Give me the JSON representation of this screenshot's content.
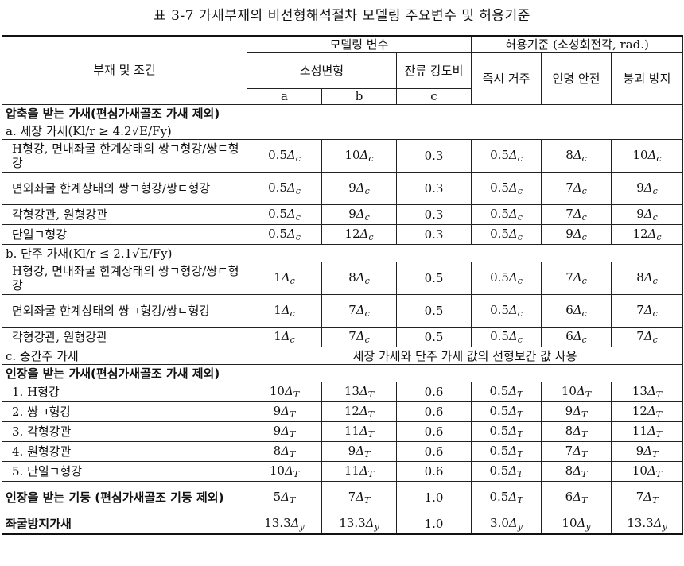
{
  "caption": "표 3-7 가새부재의 비선형해석절차 모델링 주요변수 및 허용기준",
  "header": {
    "member_condition": "부재 및 조건",
    "modeling_params": "모델링 변수",
    "acceptance": "허용기준 (소성회전각, rad.)",
    "plastic_deform": "소성변형",
    "residual_strength": "잔류 강도비",
    "io": "즉시 거주",
    "ls": "인명 안전",
    "cp": "붕괴 방지",
    "col_a": "a",
    "col_b": "b",
    "col_c": "c"
  },
  "sections": {
    "compression": "압축을 받는 가새(편심가새골조 가새 제외)",
    "slender": "a. 세장 가새(Kl/r ≥ 4.2√E/Fy)",
    "stocky": "b. 단주 가새(Kl/r ≤ 2.1√E/Fy)",
    "intermediate": "c. 중간주 가새",
    "intermediate_note": "세장 가새와 단주 가새 값의 선형보간 값 사용",
    "tension": "인장을 받는 가새(편심가새골조 가새 제외)",
    "tension_column": "인장을 받는 기둥 (편심가새골조 기둥 제외)",
    "buckling_restrained": "좌굴방지가새"
  },
  "slender_rows": [
    {
      "label": "H형강, 면내좌굴 한계상태의 쌍ㄱ형강/쌍ㄷ형강",
      "a": "0.5Δc",
      "b": "10Δc",
      "c": "0.3",
      "io": "0.5Δc",
      "ls": "8Δc",
      "cp": "10Δc"
    },
    {
      "label": "면외좌굴 한계상태의 쌍ㄱ형강/쌍ㄷ형강",
      "a": "0.5Δc",
      "b": "9Δc",
      "c": "0.3",
      "io": "0.5Δc",
      "ls": "7Δc",
      "cp": "9Δc"
    },
    {
      "label": "각형강관, 원형강관",
      "a": "0.5Δc",
      "b": "9Δc",
      "c": "0.3",
      "io": "0.5Δc",
      "ls": "7Δc",
      "cp": "9Δc"
    },
    {
      "label": "단일ㄱ형강",
      "a": "0.5Δc",
      "b": "12Δc",
      "c": "0.3",
      "io": "0.5Δc",
      "ls": "9Δc",
      "cp": "12Δc"
    }
  ],
  "stocky_rows": [
    {
      "label": "H형강, 면내좌굴 한계상태의 쌍ㄱ형강/쌍ㄷ형강",
      "a": "1Δc",
      "b": "8Δc",
      "c": "0.5",
      "io": "0.5Δc",
      "ls": "7Δc",
      "cp": "8Δc"
    },
    {
      "label": "면외좌굴 한계상태의 쌍ㄱ형강/쌍ㄷ형강",
      "a": "1Δc",
      "b": "7Δc",
      "c": "0.5",
      "io": "0.5Δc",
      "ls": "6Δc",
      "cp": "7Δc"
    },
    {
      "label": "각형강관, 원형강관",
      "a": "1Δc",
      "b": "7Δc",
      "c": "0.5",
      "io": "0.5Δc",
      "ls": "6Δc",
      "cp": "7Δc"
    }
  ],
  "tension_rows": [
    {
      "label": "1. H형강",
      "a": "10ΔT",
      "b": "13ΔT",
      "c": "0.6",
      "io": "0.5ΔT",
      "ls": "10ΔT",
      "cp": "13ΔT"
    },
    {
      "label": "2. 쌍ㄱ형강",
      "a": "9ΔT",
      "b": "12ΔT",
      "c": "0.6",
      "io": "0.5ΔT",
      "ls": "9ΔT",
      "cp": "12ΔT"
    },
    {
      "label": "3. 각형강관",
      "a": "9ΔT",
      "b": "11ΔT",
      "c": "0.6",
      "io": "0.5ΔT",
      "ls": "8ΔT",
      "cp": "11ΔT"
    },
    {
      "label": "4. 원형강관",
      "a": "8ΔT",
      "b": "9ΔT",
      "c": "0.6",
      "io": "0.5ΔT",
      "ls": "7ΔT",
      "cp": "9ΔT"
    },
    {
      "label": "5. 단일ㄱ형강",
      "a": "10ΔT",
      "b": "11ΔT",
      "c": "0.6",
      "io": "0.5ΔT",
      "ls": "8ΔT",
      "cp": "10ΔT"
    }
  ],
  "tension_column_row": {
    "a": "5ΔT",
    "b": "7ΔT",
    "c": "1.0",
    "io": "0.5ΔT",
    "ls": "6ΔT",
    "cp": "7ΔT"
  },
  "brb_row": {
    "a": "13.3Δy",
    "b": "13.3Δy",
    "c": "1.0",
    "io": "3.0Δy",
    "ls": "10Δy",
    "cp": "13.3Δy"
  }
}
